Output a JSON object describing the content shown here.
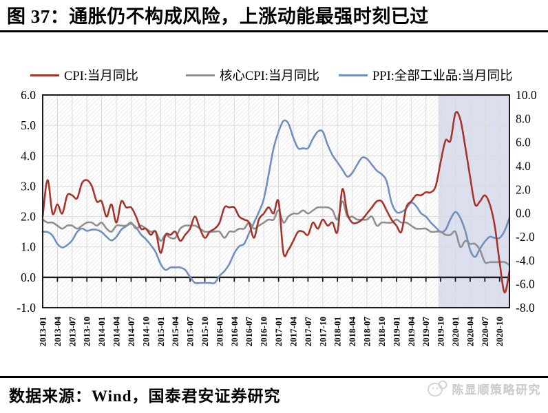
{
  "title": "图 37：通胀仍不构成风险，上涨动能最强时刻已过",
  "legend": [
    {
      "label": "CPI:当月同比",
      "color": "#a5342d"
    },
    {
      "label": "核心CPI:当月同比",
      "color": "#8f8f8f"
    },
    {
      "label": "PPI:全部工业品:当月同比",
      "color": "#6f90bf"
    }
  ],
  "source_line": "数据来源：Wind，国泰君安证券研究",
  "watermark": {
    "label": "陈显顺策略研究"
  },
  "chart_data": {
    "type": "line",
    "x_start": "2013-01",
    "x_frequency": "monthly",
    "x_tick_labels": [
      "2013-01",
      "2013-04",
      "2013-07",
      "2013-10",
      "2014-01",
      "2014-04",
      "2014-07",
      "2014-10",
      "2015-01",
      "2015-04",
      "2015-07",
      "2015-10",
      "2016-01",
      "2016-04",
      "2016-07",
      "2016-10",
      "2017-01",
      "2017-04",
      "2017-07",
      "2017-10",
      "2018-01",
      "2018-04",
      "2018-07",
      "2018-10",
      "2019-01",
      "2019-04",
      "2019-07",
      "2019-10",
      "2020-01",
      "2020-04",
      "2020-07",
      "2020-10"
    ],
    "left_axis": {
      "min": -1,
      "max": 6,
      "tick_labels": [
        "6.0",
        "5.0",
        "4.0",
        "3.0",
        "2.0",
        "1.0",
        "0.0",
        "-1.0"
      ]
    },
    "right_axis": {
      "min": -8,
      "max": 10,
      "tick_labels": [
        "10.0",
        "8.0",
        "6.0",
        "4.0",
        "2.0",
        "0.0",
        "-2.0",
        "-4.0",
        "-6.0",
        "-8.0"
      ]
    },
    "grid": true,
    "grid_color": "#dadada",
    "hatch_color": "#ececec",
    "axis_color": "#1a1a1a",
    "highlight_band": {
      "from": "2019-10",
      "to": "2020-12",
      "color": "#d7dcec"
    },
    "series": [
      {
        "name": "CPI:当月同比",
        "axis": "left",
        "color": "#a5342d",
        "values": [
          2.0,
          3.2,
          2.1,
          2.4,
          2.1,
          2.7,
          2.7,
          2.6,
          3.1,
          3.2,
          3.0,
          2.5,
          2.5,
          2.0,
          2.4,
          1.8,
          2.5,
          2.3,
          2.3,
          2.0,
          1.6,
          1.6,
          1.4,
          1.5,
          0.8,
          1.4,
          1.4,
          1.5,
          1.2,
          1.4,
          1.6,
          2.0,
          1.6,
          1.3,
          1.5,
          1.6,
          1.8,
          2.3,
          2.3,
          2.3,
          2.0,
          1.9,
          1.8,
          1.3,
          1.9,
          2.1,
          2.3,
          2.1,
          2.5,
          0.8,
          0.9,
          1.2,
          1.5,
          1.5,
          1.4,
          1.8,
          1.6,
          1.9,
          1.7,
          1.8,
          1.5,
          2.9,
          2.1,
          1.8,
          1.8,
          1.9,
          2.1,
          2.3,
          2.5,
          2.5,
          2.2,
          1.9,
          1.7,
          1.5,
          2.3,
          2.5,
          2.7,
          2.7,
          2.8,
          2.8,
          3.0,
          3.8,
          4.5,
          4.5,
          5.4,
          5.2,
          4.3,
          3.3,
          2.4,
          2.5,
          2.7,
          2.4,
          1.7,
          0.5,
          -0.5,
          0.2
        ]
      },
      {
        "name": "核心CPI:当月同比",
        "axis": "left",
        "color": "#8f8f8f",
        "values": [
          1.9,
          1.8,
          1.8,
          1.7,
          1.6,
          1.7,
          1.7,
          1.6,
          1.7,
          1.8,
          1.8,
          1.7,
          1.8,
          1.6,
          1.5,
          1.7,
          1.7,
          1.7,
          1.8,
          1.6,
          1.7,
          1.6,
          1.5,
          1.5,
          1.2,
          1.4,
          1.3,
          1.3,
          1.6,
          1.7,
          1.7,
          1.7,
          1.6,
          1.5,
          1.5,
          1.5,
          1.5,
          1.3,
          1.5,
          1.5,
          1.6,
          1.6,
          1.8,
          1.6,
          1.7,
          1.8,
          1.9,
          1.9,
          2.2,
          1.8,
          2.0,
          2.1,
          2.1,
          2.2,
          2.1,
          2.2,
          2.3,
          2.3,
          2.3,
          2.2,
          1.9,
          2.5,
          2.0,
          2.0,
          1.9,
          1.9,
          1.9,
          2.0,
          1.7,
          1.8,
          1.8,
          1.8,
          1.9,
          1.8,
          1.8,
          1.7,
          1.6,
          1.6,
          1.6,
          1.5,
          1.5,
          1.5,
          1.4,
          1.4,
          1.5,
          1.0,
          1.2,
          1.1,
          1.1,
          0.9,
          0.5,
          0.5,
          0.5,
          0.5,
          0.5,
          0.4
        ]
      },
      {
        "name": "PPI:全部工业品:当月同比",
        "axis": "right",
        "color": "#6f90bf",
        "values": [
          -1.6,
          -1.6,
          -1.9,
          -2.6,
          -2.9,
          -2.7,
          -2.3,
          -1.6,
          -1.3,
          -1.5,
          -1.4,
          -1.4,
          -1.6,
          -2.0,
          -2.3,
          -2.0,
          -1.4,
          -1.1,
          -0.9,
          -1.2,
          -1.8,
          -2.2,
          -2.7,
          -3.3,
          -4.3,
          -4.8,
          -4.6,
          -4.6,
          -4.6,
          -4.8,
          -5.4,
          -5.9,
          -5.9,
          -5.9,
          -5.9,
          -5.9,
          -5.3,
          -4.9,
          -4.3,
          -3.4,
          -2.8,
          -2.6,
          -1.7,
          -0.8,
          0.1,
          1.2,
          3.3,
          5.5,
          6.9,
          7.8,
          7.6,
          6.4,
          5.5,
          5.5,
          5.5,
          6.3,
          6.9,
          6.9,
          5.8,
          4.9,
          4.3,
          3.7,
          3.1,
          3.4,
          4.1,
          4.7,
          4.6,
          4.1,
          3.6,
          3.3,
          2.7,
          0.9,
          0.1,
          0.1,
          0.4,
          0.9,
          0.6,
          0.0,
          -0.3,
          -0.8,
          -1.2,
          -1.6,
          -1.4,
          -0.5,
          0.1,
          -0.4,
          -1.5,
          -3.1,
          -3.7,
          -3.0,
          -2.4,
          -2.0,
          -2.1,
          -2.1,
          -1.5,
          -0.4
        ]
      }
    ]
  }
}
